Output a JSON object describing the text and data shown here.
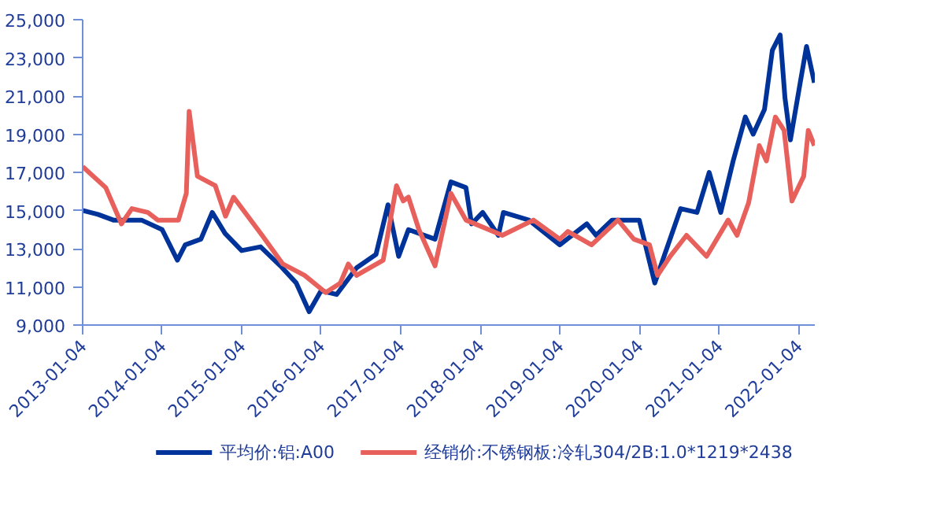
{
  "chart_data": {
    "type": "line",
    "xlim": [
      "2013-01-04",
      "2022-03-20"
    ],
    "xticks": [
      "2013-01-04",
      "2014-01-04",
      "2015-01-04",
      "2016-01-04",
      "2017-01-04",
      "2018-01-04",
      "2019-01-04",
      "2020-01-04",
      "2021-01-04",
      "2022-01-04"
    ],
    "ylim": [
      9000,
      25000
    ],
    "yticks": [
      {
        "value": 9000,
        "label": "9,000"
      },
      {
        "value": 11000,
        "label": "11,000"
      },
      {
        "value": 13000,
        "label": "13,000"
      },
      {
        "value": 15000,
        "label": "15,000"
      },
      {
        "value": 17000,
        "label": "17,000"
      },
      {
        "value": 19000,
        "label": "19,000"
      },
      {
        "value": 21000,
        "label": "21,000"
      },
      {
        "value": 23000,
        "label": "23,000"
      },
      {
        "value": 25000,
        "label": "25,000"
      }
    ],
    "grid": false,
    "legend": "bottom",
    "series": [
      {
        "name": "平均价:铝:A00",
        "color": "#003399",
        "x": [
          "2013-01-04",
          "2013-03-15",
          "2013-05-25",
          "2013-10-01",
          "2014-01-04",
          "2014-03-15",
          "2014-04-20",
          "2014-07-01",
          "2014-08-22",
          "2014-10-20",
          "2015-01-04",
          "2015-04-01",
          "2015-07-01",
          "2015-09-12",
          "2015-11-10",
          "2016-01-04",
          "2016-03-15",
          "2016-06-15",
          "2016-09-12",
          "2016-11-06",
          "2016-12-25",
          "2017-02-08",
          "2017-06-10",
          "2017-08-22",
          "2017-10-30",
          "2017-11-25",
          "2018-01-15",
          "2018-03-28",
          "2018-04-20",
          "2018-08-15",
          "2019-01-04",
          "2019-05-08",
          "2019-06-20",
          "2019-09-01",
          "2020-01-04",
          "2020-03-15",
          "2020-07-12",
          "2020-09-25",
          "2020-11-20",
          "2021-01-12",
          "2021-03-10",
          "2021-05-05",
          "2021-06-10",
          "2021-08-01",
          "2021-09-06",
          "2021-10-12",
          "2021-11-03",
          "2021-11-28",
          "2022-01-12",
          "2022-02-10",
          "2022-03-18"
        ],
        "values": [
          15000,
          14800,
          14500,
          14500,
          14000,
          12400,
          13200,
          13500,
          14900,
          13800,
          12900,
          13100,
          12100,
          11200,
          9700,
          10800,
          10600,
          12000,
          12700,
          15300,
          12600,
          14000,
          13500,
          16500,
          16200,
          14300,
          14900,
          13700,
          14900,
          14500,
          13200,
          14300,
          13700,
          14500,
          14500,
          11200,
          15100,
          14900,
          17000,
          14900,
          17600,
          19900,
          19000,
          20300,
          23400,
          24200,
          20900,
          18700,
          21700,
          23600,
          21700
        ]
      },
      {
        "name": "经销价:不锈钢板:冷轧304/2B:1.0*1219*2438",
        "color": "#e8605c",
        "x": [
          "2013-01-04",
          "2013-04-20",
          "2013-07-01",
          "2013-08-18",
          "2013-10-30",
          "2013-12-15",
          "2014-03-20",
          "2014-04-25",
          "2014-05-08",
          "2014-06-15",
          "2014-09-05",
          "2014-10-22",
          "2014-11-28",
          "2015-04-08",
          "2015-07-12",
          "2015-10-20",
          "2016-01-25",
          "2016-04-01",
          "2016-05-08",
          "2016-06-15",
          "2016-10-15",
          "2016-12-15",
          "2017-01-15",
          "2017-02-08",
          "2017-03-28",
          "2017-06-10",
          "2017-08-22",
          "2017-10-30",
          "2018-04-15",
          "2018-09-05",
          "2019-01-04",
          "2019-02-10",
          "2019-05-30",
          "2019-09-28",
          "2019-12-10",
          "2020-02-20",
          "2020-03-28",
          "2020-05-25",
          "2020-08-08",
          "2020-11-08",
          "2021-02-15",
          "2021-03-28",
          "2021-05-20",
          "2021-07-08",
          "2021-08-10",
          "2021-09-20",
          "2021-10-30",
          "2021-12-05",
          "2022-01-28",
          "2022-02-18",
          "2022-03-18"
        ],
        "values": [
          17300,
          16200,
          14300,
          15100,
          14900,
          14500,
          14500,
          15900,
          20200,
          16800,
          16300,
          14700,
          15700,
          13700,
          12200,
          11600,
          10700,
          11200,
          12200,
          11600,
          12400,
          16300,
          15500,
          15700,
          14000,
          12100,
          15900,
          14500,
          13700,
          14500,
          13500,
          13900,
          13200,
          14500,
          13500,
          13200,
          11600,
          12600,
          13700,
          12600,
          14500,
          13700,
          15400,
          18400,
          17600,
          19900,
          19200,
          15500,
          16800,
          19200,
          18400
        ]
      }
    ]
  }
}
